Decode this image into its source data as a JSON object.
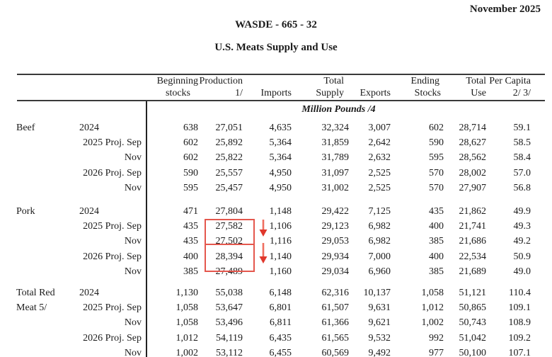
{
  "page": {
    "date": "November 2025",
    "report_id": "WASDE - 665 - 32",
    "table_title": "U.S. Meats Supply and Use",
    "units_note": "Million Pounds /4"
  },
  "table": {
    "header_line1": [
      "Beginning",
      "Production",
      "",
      "Total",
      "",
      "Ending",
      "Total",
      "Per Capita"
    ],
    "header_line2": [
      "stocks",
      "1/",
      "Imports",
      "Supply",
      "Exports",
      "Stocks",
      "Use",
      "2/ 3/"
    ],
    "columns": [
      "Beginning stocks",
      "Production 1/",
      "Imports",
      "Total Supply",
      "Exports",
      "Ending Stocks",
      "Total Use",
      "Per Capita 2/ 3/"
    ],
    "sections": [
      {
        "commodity": "Beef",
        "rows": [
          {
            "label": "2024",
            "values": [
              "638",
              "27,051",
              "4,635",
              "32,324",
              "3,007",
              "602",
              "28,714",
              "59.1"
            ]
          },
          {
            "label": "2025 Proj. Sep",
            "values": [
              "602",
              "25,892",
              "5,364",
              "31,859",
              "2,642",
              "590",
              "28,627",
              "58.5"
            ]
          },
          {
            "label": "Nov",
            "values": [
              "602",
              "25,822",
              "5,364",
              "31,789",
              "2,632",
              "595",
              "28,562",
              "58.4"
            ]
          },
          {
            "label": "2026 Proj. Sep",
            "values": [
              "590",
              "25,557",
              "4,950",
              "31,097",
              "2,525",
              "570",
              "28,002",
              "57.0"
            ]
          },
          {
            "label": "Nov",
            "values": [
              "595",
              "25,457",
              "4,950",
              "31,002",
              "2,525",
              "570",
              "27,907",
              "56.8"
            ]
          }
        ]
      },
      {
        "commodity": "Pork",
        "rows": [
          {
            "label": "2024",
            "values": [
              "471",
              "27,804",
              "1,148",
              "29,422",
              "7,125",
              "435",
              "21,862",
              "49.9"
            ]
          },
          {
            "label": "2025 Proj. Sep",
            "values": [
              "435",
              "27,582",
              "1,106",
              "29,123",
              "6,982",
              "400",
              "21,741",
              "49.3"
            ]
          },
          {
            "label": "Nov",
            "values": [
              "435",
              "27,502",
              "1,116",
              "29,053",
              "6,982",
              "385",
              "21,686",
              "49.2"
            ]
          },
          {
            "label": "2026 Proj. Sep",
            "values": [
              "400",
              "28,394",
              "1,140",
              "29,934",
              "7,000",
              "400",
              "22,534",
              "50.9"
            ]
          },
          {
            "label": "Nov",
            "values": [
              "385",
              "27,489",
              "1,160",
              "29,034",
              "6,960",
              "385",
              "21,689",
              "49.0"
            ]
          }
        ]
      },
      {
        "commodity": "Total Red Meat 5/",
        "rows": [
          {
            "label": "2024",
            "values": [
              "1,130",
              "55,038",
              "6,148",
              "62,316",
              "10,137",
              "1,058",
              "51,121",
              "110.4"
            ]
          },
          {
            "label": "2025 Proj. Sep",
            "values": [
              "1,058",
              "53,647",
              "6,801",
              "61,507",
              "9,631",
              "1,012",
              "50,865",
              "109.1"
            ]
          },
          {
            "label": "Nov",
            "values": [
              "1,058",
              "53,496",
              "6,811",
              "61,366",
              "9,621",
              "1,002",
              "50,743",
              "108.9"
            ]
          },
          {
            "label": "2026 Proj. Sep",
            "values": [
              "1,012",
              "54,119",
              "6,435",
              "61,565",
              "9,532",
              "992",
              "51,042",
              "109.2"
            ]
          },
          {
            "label": "Nov",
            "values": [
              "1,002",
              "53,112",
              "6,455",
              "60,569",
              "9,492",
              "977",
              "50,100",
              "107.1"
            ]
          }
        ]
      }
    ],
    "annotations": {
      "box_color": "#e4574d",
      "arrow_color": "#e0382c",
      "arrow_shaft_color": "#ef6e60",
      "boxes": [
        {
          "name": "pork-2025-production-highlight",
          "section": "Pork",
          "column": "Production 1/",
          "values": [
            "27,582",
            "27,502"
          ]
        },
        {
          "name": "pork-2026-production-highlight",
          "section": "Pork",
          "column": "Production 1/",
          "values": [
            "28,394",
            "27,489"
          ]
        }
      ],
      "arrows": [
        {
          "name": "pork-2025-decrease-arrow",
          "direction": "down"
        },
        {
          "name": "pork-2026-decrease-arrow",
          "direction": "down"
        }
      ]
    }
  }
}
